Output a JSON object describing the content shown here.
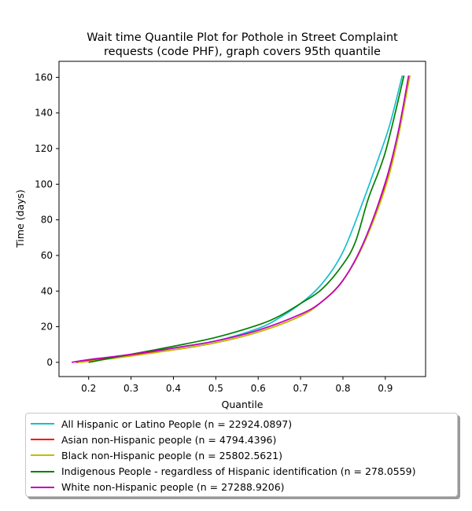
{
  "chart_data": {
    "type": "line",
    "title_line1": "Wait time Quantile Plot for Pothole in Street Complaint",
    "title_line2": "requests (code PHF), graph covers 95th quantile",
    "xlabel": "Quantile",
    "ylabel": "Time (days)",
    "xlim": [
      0.13,
      0.995
    ],
    "ylim": [
      -8,
      169
    ],
    "x_ticks": [
      0.2,
      0.3,
      0.4,
      0.5,
      0.6,
      0.7,
      0.8,
      0.9
    ],
    "x_tick_labels": [
      "0.2",
      "0.3",
      "0.4",
      "0.5",
      "0.6",
      "0.7",
      "0.8",
      "0.9"
    ],
    "y_ticks": [
      0,
      20,
      40,
      60,
      80,
      100,
      120,
      140,
      160
    ],
    "y_tick_labels": [
      "0",
      "20",
      "40",
      "60",
      "80",
      "100",
      "120",
      "140",
      "160"
    ],
    "grid": false,
    "legend_position": "bottom",
    "series": [
      {
        "name": "All Hispanic or Latino People (n = 22924.0897)",
        "color": "#17becf",
        "x": [
          0.175,
          0.2,
          0.3,
          0.4,
          0.5,
          0.6,
          0.65,
          0.7,
          0.75,
          0.8,
          0.85,
          0.88,
          0.91,
          0.94
        ],
        "y": [
          0,
          1,
          4,
          8,
          12,
          19,
          25,
          33,
          44,
          62,
          92,
          112,
          133,
          161
        ]
      },
      {
        "name": "Asian non-Hispanic people (n = 4794.4396)",
        "color": "#ff0000",
        "x": [
          0.17,
          0.2,
          0.3,
          0.4,
          0.5,
          0.6,
          0.7,
          0.75,
          0.8,
          0.85,
          0.9,
          0.93,
          0.958
        ],
        "y": [
          0,
          1,
          4,
          7,
          11,
          17,
          26,
          34,
          46,
          67,
          100,
          128,
          161
        ]
      },
      {
        "name": "Black non-Hispanic people (n = 25802.5621)",
        "color": "#bfbf00",
        "x": [
          0.175,
          0.2,
          0.3,
          0.4,
          0.5,
          0.6,
          0.7,
          0.75,
          0.8,
          0.85,
          0.9,
          0.93,
          0.958
        ],
        "y": [
          0,
          0.5,
          3.5,
          7,
          11,
          17,
          26,
          34,
          46,
          67,
          98,
          126,
          161
        ]
      },
      {
        "name": "Indigenous People - regardless of Hispanic identification (n = 278.0559)",
        "color": "#008000",
        "x": [
          0.2,
          0.3,
          0.4,
          0.5,
          0.6,
          0.65,
          0.7,
          0.75,
          0.8,
          0.83,
          0.86,
          0.9,
          0.944
        ],
        "y": [
          0,
          4.5,
          9,
          14,
          21,
          26,
          33,
          41,
          55,
          68,
          92,
          118,
          161
        ]
      },
      {
        "name": "White non-Hispanic people (n = 27288.9206)",
        "color": "#bf00bf",
        "x": [
          0.16,
          0.2,
          0.3,
          0.4,
          0.5,
          0.6,
          0.7,
          0.75,
          0.8,
          0.85,
          0.9,
          0.93,
          0.955
        ],
        "y": [
          0,
          1.5,
          4.5,
          8,
          12,
          18,
          27,
          34,
          46,
          68,
          101,
          129,
          161
        ]
      }
    ]
  }
}
